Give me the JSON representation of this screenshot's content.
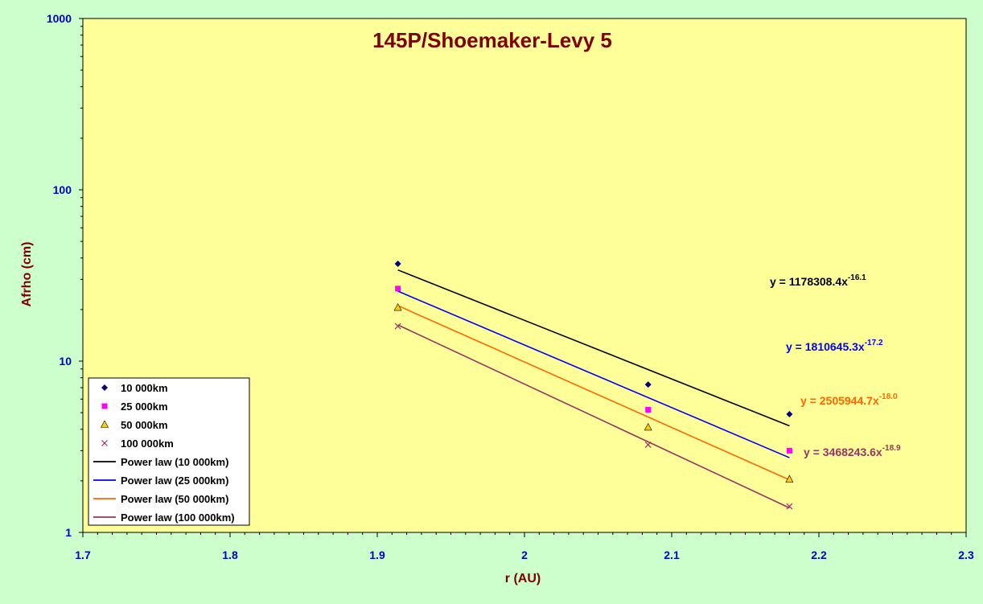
{
  "chart_data": {
    "type": "scatter",
    "title": "145P/Shoemaker-Levy 5",
    "xlabel": "r (AU)",
    "ylabel": "Afrho (cm)",
    "xlim": [
      1.7,
      2.3
    ],
    "ylim": [
      1,
      1000
    ],
    "yscale": "log",
    "x_ticks": [
      "1.7",
      "1.8",
      "1.9",
      "2",
      "2.1",
      "2.2",
      "2.3"
    ],
    "y_ticks": [
      "1",
      "10",
      "100",
      "1000"
    ],
    "legend_position": "bottom-left",
    "grid": false,
    "colors": {
      "background": "#ccffcc",
      "plot_area": "#ffff99",
      "title": "#800000",
      "axis_label": "#800000",
      "tick_label": "#0000cc"
    },
    "series": [
      {
        "name": "10 000km",
        "marker": "diamond",
        "color": "#000080",
        "x": [
          1.914,
          2.084,
          2.18
        ],
        "y": [
          37.0,
          7.3,
          4.9
        ]
      },
      {
        "name": "25 000km",
        "marker": "square",
        "color": "#ff00ff",
        "x": [
          1.914,
          2.084,
          2.18
        ],
        "y": [
          26.5,
          5.2,
          3.0
        ]
      },
      {
        "name": "50 000km",
        "marker": "triangle",
        "color": "#ff9900",
        "x": [
          1.914,
          2.084,
          2.18
        ],
        "y": [
          20.5,
          4.1,
          2.04
        ]
      },
      {
        "name": "100 000km",
        "marker": "x",
        "color": "#993366",
        "x": [
          1.914,
          2.084,
          2.18
        ],
        "y": [
          16.0,
          3.25,
          1.42
        ]
      }
    ],
    "trendlines": [
      {
        "name": "Power law (10 000km)",
        "color": "#000000",
        "a": 1178308.4,
        "b": -16.1,
        "x_range": [
          1.914,
          2.18
        ],
        "label": "y = 1178308.4x",
        "exponent": "-16.1"
      },
      {
        "name": "Power law (25 000km)",
        "color": "#0000ff",
        "a": 1810645.3,
        "b": -17.2,
        "x_range": [
          1.914,
          2.18
        ],
        "label": "y = 1810645.3x",
        "exponent": "-17.2"
      },
      {
        "name": "Power law (50 000km)",
        "color": "#ff6600",
        "a": 2505944.7,
        "b": -18.0,
        "x_range": [
          1.914,
          2.18
        ],
        "label": "y = 2505944.7x",
        "exponent": "-18.0"
      },
      {
        "name": "Power law (100 000km)",
        "color": "#993366",
        "a": 3468243.6,
        "b": -18.9,
        "x_range": [
          1.914,
          2.18
        ],
        "label": "y = 3468243.6x",
        "exponent": "-18.9"
      }
    ]
  }
}
